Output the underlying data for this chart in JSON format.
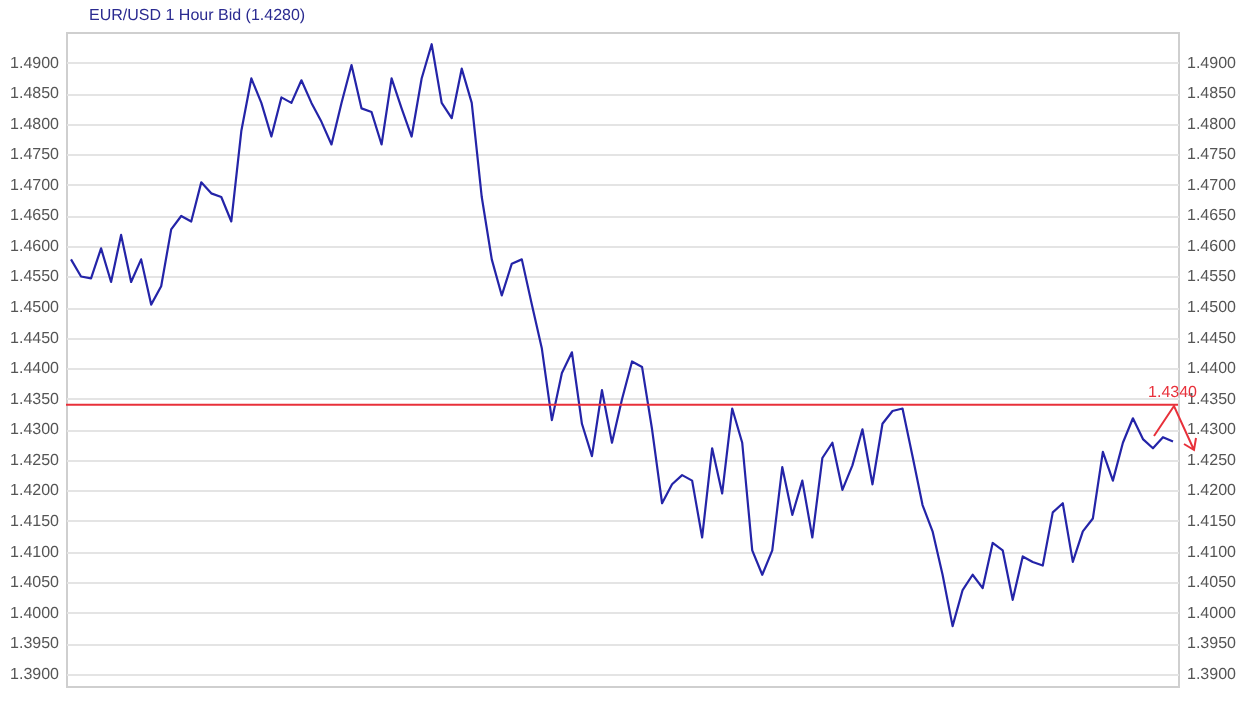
{
  "chart_data": {
    "type": "line",
    "title": "EUR/USD 1 Hour Bid (1.4280)",
    "categories": [
      null,
      null,
      null,
      null,
      null,
      null,
      null,
      null,
      null,
      null,
      null,
      null,
      null,
      null,
      null,
      null,
      null,
      null,
      null,
      null,
      null,
      null,
      null,
      null,
      null,
      null,
      null,
      null,
      null,
      null,
      null,
      null,
      null,
      null,
      null,
      null,
      null,
      null,
      null,
      null,
      null,
      null,
      null,
      null,
      null,
      null,
      null,
      null,
      null,
      null,
      null,
      null,
      null,
      null,
      null,
      null,
      null,
      null,
      null,
      null,
      null,
      null,
      null,
      null,
      null,
      null,
      null,
      null,
      null,
      null,
      null,
      null,
      null,
      null,
      null,
      null,
      null,
      null,
      null,
      null,
      null,
      null,
      null,
      null,
      null,
      null,
      null,
      null,
      null,
      null,
      null,
      null,
      null,
      null,
      null,
      null,
      null,
      null,
      null,
      null,
      null,
      null,
      null,
      null,
      null,
      null,
      null,
      null,
      null,
      null,
      null
    ],
    "series": [
      {
        "color": "#2424a8",
        "values": [
          1.4578,
          1.455,
          1.4547,
          1.4596,
          1.4541,
          1.4618,
          1.4541,
          1.4578,
          1.4504,
          1.4534,
          1.4627,
          1.4649,
          1.464,
          1.4704,
          1.4686,
          1.468,
          1.464,
          1.4788,
          1.4874,
          1.4834,
          1.4779,
          1.4843,
          1.4834,
          1.4871,
          1.4834,
          1.4803,
          1.4766,
          1.4834,
          1.4896,
          1.4825,
          1.4819,
          1.4766,
          1.4874,
          1.4825,
          1.4779,
          1.4874,
          1.493,
          1.4834,
          1.4809,
          1.489,
          1.4834,
          1.468,
          1.4578,
          1.4519,
          1.4571,
          1.4578,
          1.4504,
          1.4432,
          1.4315,
          1.4392,
          1.4426,
          1.4309,
          1.4256,
          1.4364,
          1.4278,
          1.4349,
          1.4411,
          1.4402,
          1.43,
          1.4179,
          1.421,
          1.4225,
          1.4216,
          1.4123,
          1.4269,
          1.4195,
          1.4334,
          1.4278,
          1.4102,
          1.4062,
          1.4102,
          1.4238,
          1.416,
          1.4216,
          1.4123,
          1.4253,
          1.4278,
          1.4201,
          1.4241,
          1.43,
          1.421,
          1.4309,
          1.433,
          1.4334,
          1.4256,
          1.4176,
          1.4133,
          1.4062,
          1.3978,
          1.4037,
          1.4062,
          1.404,
          1.4114,
          1.4102,
          1.4021,
          1.4092,
          1.4083,
          1.4077,
          1.4164,
          1.4179,
          1.4083,
          1.4133,
          1.4154,
          1.4263,
          1.4216,
          1.4278,
          1.4318,
          1.4284,
          1.4269,
          1.4287,
          1.428
        ]
      }
    ],
    "ylim": [
      1.388,
      1.495
    ],
    "yticks": [
      {
        "value": 1.39,
        "label": "1.3900"
      },
      {
        "value": 1.395,
        "label": "1.3950"
      },
      {
        "value": 1.4,
        "label": "1.4000"
      },
      {
        "value": 1.405,
        "label": "1.4050"
      },
      {
        "value": 1.41,
        "label": "1.4100"
      },
      {
        "value": 1.415,
        "label": "1.4150"
      },
      {
        "value": 1.42,
        "label": "1.4200"
      },
      {
        "value": 1.425,
        "label": "1.4250"
      },
      {
        "value": 1.43,
        "label": "1.4300"
      },
      {
        "value": 1.435,
        "label": "1.4350"
      },
      {
        "value": 1.44,
        "label": "1.4400"
      },
      {
        "value": 1.445,
        "label": "1.4450"
      },
      {
        "value": 1.45,
        "label": "1.4500"
      },
      {
        "value": 1.455,
        "label": "1.4550"
      },
      {
        "value": 1.46,
        "label": "1.4600"
      },
      {
        "value": 1.465,
        "label": "1.4650"
      },
      {
        "value": 1.47,
        "label": "1.4700"
      },
      {
        "value": 1.475,
        "label": "1.4750"
      },
      {
        "value": 1.48,
        "label": "1.4800"
      },
      {
        "value": 1.485,
        "label": "1.4850"
      },
      {
        "value": 1.49,
        "label": "1.4900"
      }
    ],
    "y2lim": [
      1.388,
      1.495
    ],
    "y2ticks": [
      {
        "value": 1.39,
        "label": "1.3900"
      },
      {
        "value": 1.395,
        "label": "1.3950"
      },
      {
        "value": 1.4,
        "label": "1.4000"
      },
      {
        "value": 1.405,
        "label": "1.4050"
      },
      {
        "value": 1.41,
        "label": "1.4100"
      },
      {
        "value": 1.415,
        "label": "1.4150"
      },
      {
        "value": 1.42,
        "label": "1.4200"
      },
      {
        "value": 1.425,
        "label": "1.4250"
      },
      {
        "value": 1.43,
        "label": "1.4300"
      },
      {
        "value": 1.435,
        "label": "1.4350"
      },
      {
        "value": 1.44,
        "label": "1.4400"
      },
      {
        "value": 1.445,
        "label": "1.4450"
      },
      {
        "value": 1.45,
        "label": "1.4500"
      },
      {
        "value": 1.455,
        "label": "1.4550"
      },
      {
        "value": 1.46,
        "label": "1.4600"
      },
      {
        "value": 1.465,
        "label": "1.4650"
      },
      {
        "value": 1.47,
        "label": "1.4700"
      },
      {
        "value": 1.475,
        "label": "1.4750"
      },
      {
        "value": 1.48,
        "label": "1.4800"
      },
      {
        "value": 1.485,
        "label": "1.4850"
      },
      {
        "value": 1.49,
        "label": "1.4900"
      }
    ],
    "ref_lines": [
      {
        "axis": "y",
        "value": 1.434,
        "label": "1.4340",
        "color": "#e8303a"
      }
    ],
    "grid": "y"
  }
}
